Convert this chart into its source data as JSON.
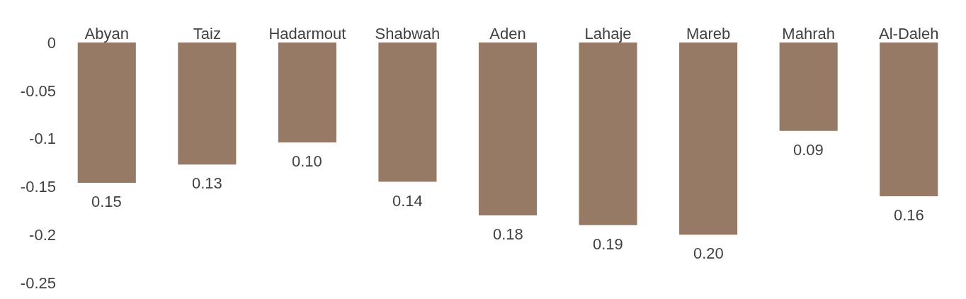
{
  "chart_data": {
    "type": "bar",
    "categories": [
      "Abyan",
      "Taiz",
      "Hadarmout",
      "Shabwah",
      "Aden",
      "Lahaje",
      "Mareb",
      "Mahrah",
      "Al-Daleh"
    ],
    "values": [
      -0.146,
      -0.127,
      -0.104,
      -0.145,
      -0.18,
      -0.19,
      -0.2,
      -0.092,
      -0.16
    ],
    "color": "#977a65",
    "ylim": [
      -0.25,
      0
    ],
    "yticks": [
      0,
      -0.05,
      -0.1,
      -0.15,
      -0.2,
      -0.25
    ],
    "grid": false,
    "annotations": [
      {
        "text": "0.15",
        "x": "Abyan",
        "y": -0.146
      },
      {
        "text": "0.13",
        "x": "Taiz",
        "y": -0.127
      },
      {
        "text": "0.10",
        "x": "Hadarmout",
        "y": -0.104
      },
      {
        "text": "0.14",
        "x": "Shabwah",
        "y": -0.145
      },
      {
        "text": "0.18",
        "x": "Aden",
        "y": -0.18
      },
      {
        "text": "0.19",
        "x": "Lahaje",
        "y": -0.19
      },
      {
        "text": "0.20",
        "x": "Mareb",
        "y": -0.2
      },
      {
        "text": "0.09",
        "x": "Mahrah",
        "y": -0.092
      },
      {
        "text": "0.16",
        "x": "Al-Daleh",
        "y": -0.16
      }
    ]
  }
}
